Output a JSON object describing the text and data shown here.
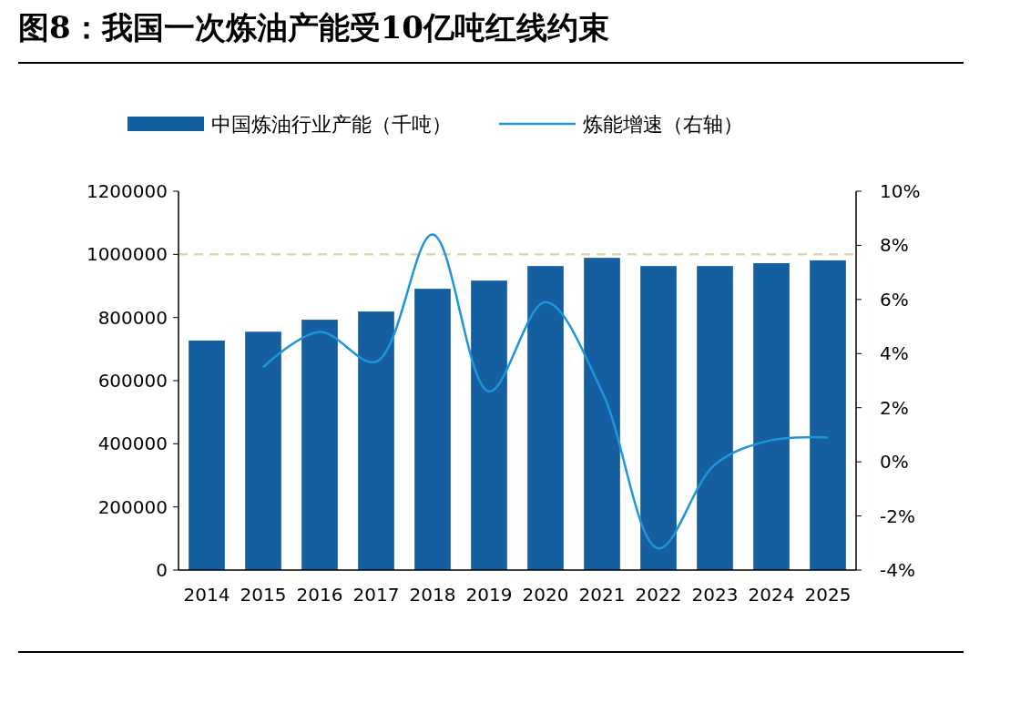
{
  "chart_data": {
    "type": "bar",
    "title": "图8：我国一次炼油产能受10亿吨红线约束",
    "categories": [
      "2014",
      "2015",
      "2016",
      "2017",
      "2018",
      "2019",
      "2020",
      "2021",
      "2022",
      "2023",
      "2024",
      "2025"
    ],
    "series": [
      {
        "name": "中国炼油行业产能（千吨）",
        "color": "#155fa0",
        "values": [
          727000,
          755000,
          793000,
          819000,
          891000,
          917000,
          963000,
          989000,
          963000,
          963000,
          972000,
          981000
        ]
      },
      {
        "name": "炼能增速（右轴）",
        "type": "line",
        "axis": "y2",
        "color": "#1f96dc",
        "values": [
          null,
          3.5,
          4.8,
          3.7,
          8.4,
          2.6,
          5.9,
          2.6,
          -3.2,
          -0.1,
          0.8,
          0.9
        ]
      }
    ],
    "ylim": [
      0,
      1200000
    ],
    "yticks": [
      0,
      200000,
      400000,
      600000,
      800000,
      1000000,
      1200000
    ],
    "y2lim": [
      -4,
      10
    ],
    "y2ticks": [
      {
        "value": -4,
        "label": "-4%"
      },
      {
        "value": -2,
        "label": "-2%"
      },
      {
        "value": 0,
        "label": "0%"
      },
      {
        "value": 2,
        "label": "2%"
      },
      {
        "value": 4,
        "label": "4%"
      },
      {
        "value": 6,
        "label": "6%"
      },
      {
        "value": 8,
        "label": "8%"
      },
      {
        "value": 10,
        "label": "10%"
      }
    ],
    "ref_lines": [
      {
        "axis": "y",
        "value": 1000000,
        "color": "#e3d3b3",
        "line_style": "dashed"
      }
    ],
    "legend": "top",
    "grid": false
  }
}
